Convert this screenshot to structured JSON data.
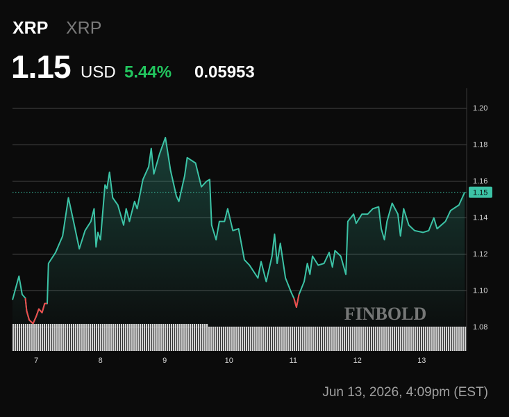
{
  "chart_data": {
    "type": "line",
    "symbol": "XRP",
    "name": "XRP",
    "price": "1.15",
    "currency": "USD",
    "change_percent": "5.44%",
    "change": "0.05953",
    "timestamp": "Jun 13, 2026, 4:09pm (EST)",
    "watermark": "FINBOLD",
    "fill_area": true,
    "grid": true,
    "x": [
      6.63,
      6.73,
      6.78,
      6.83,
      6.85,
      6.89,
      6.95,
      7.0,
      7.04,
      7.09,
      7.13,
      7.17,
      7.19,
      7.3,
      7.41,
      7.5,
      7.58,
      7.67,
      7.76,
      7.85,
      7.9,
      7.93,
      7.96,
      8.0,
      8.07,
      8.1,
      8.14,
      8.19,
      8.27,
      8.36,
      8.4,
      8.45,
      8.53,
      8.57,
      8.66,
      8.75,
      8.79,
      8.83,
      8.92,
      9.01,
      9.09,
      9.18,
      9.22,
      9.31,
      9.35,
      9.48,
      9.57,
      9.65,
      9.7,
      9.73,
      9.8,
      9.85,
      9.93,
      9.98,
      10.06,
      10.15,
      10.24,
      10.32,
      10.45,
      10.5,
      10.58,
      10.67,
      10.71,
      10.75,
      10.8,
      10.88,
      10.97,
      11.01,
      11.05,
      11.09,
      11.17,
      11.22,
      11.26,
      11.3,
      11.39,
      11.48,
      11.56,
      11.61,
      11.65,
      11.74,
      11.82,
      11.85,
      11.94,
      11.98,
      12.07,
      12.16,
      12.24,
      12.33,
      12.37,
      12.42,
      12.46,
      12.54,
      12.63,
      12.67,
      12.72,
      12.8,
      12.89,
      13.02,
      13.11,
      13.19,
      13.24,
      13.37,
      13.45,
      13.58,
      13.67
    ],
    "series": [
      {
        "color": "#3cc3a6",
        "values": [
          1.095,
          1.108,
          1.098,
          1.096,
          1.089,
          1.084,
          1.082,
          1.086,
          1.09,
          1.088,
          1.093,
          1.093,
          1.115,
          1.121,
          1.13,
          1.151,
          1.138,
          1.123,
          1.133,
          1.138,
          1.145,
          1.124,
          1.132,
          1.128,
          1.158,
          1.156,
          1.165,
          1.151,
          1.147,
          1.136,
          1.145,
          1.138,
          1.149,
          1.145,
          1.161,
          1.168,
          1.178,
          1.164,
          1.175,
          1.184,
          1.166,
          1.152,
          1.149,
          1.163,
          1.173,
          1.17,
          1.157,
          1.16,
          1.161,
          1.136,
          1.128,
          1.138,
          1.138,
          1.145,
          1.133,
          1.134,
          1.117,
          1.114,
          1.107,
          1.116,
          1.105,
          1.119,
          1.131,
          1.115,
          1.126,
          1.107,
          1.099,
          1.096,
          1.091,
          1.098,
          1.105,
          1.115,
          1.109,
          1.119,
          1.114,
          1.115,
          1.121,
          1.113,
          1.122,
          1.119,
          1.109,
          1.138,
          1.142,
          1.137,
          1.142,
          1.142,
          1.145,
          1.146,
          1.134,
          1.128,
          1.138,
          1.148,
          1.142,
          1.13,
          1.145,
          1.136,
          1.133,
          1.132,
          1.133,
          1.14,
          1.134,
          1.138,
          1.144,
          1.147,
          1.154
        ]
      },
      {
        "color": "#ee4b4b",
        "values": [
          null,
          null,
          null,
          1.096,
          1.089,
          1.084,
          1.082,
          1.086,
          1.09,
          1.088,
          1.093,
          1.093,
          null,
          null,
          null,
          null,
          null,
          null,
          null,
          null,
          null,
          null,
          null,
          null,
          null,
          null,
          null,
          null,
          null,
          null,
          null,
          null,
          null,
          null,
          null,
          null,
          null,
          null,
          null,
          null,
          null,
          null,
          null,
          null,
          null,
          null,
          null,
          null,
          null,
          null,
          null,
          null,
          null,
          null,
          null,
          null,
          null,
          null,
          null,
          null,
          null,
          null,
          null,
          null,
          null,
          null,
          null,
          1.096,
          1.091,
          1.098,
          null,
          null,
          null,
          null,
          null,
          null,
          null,
          null,
          null,
          null,
          null,
          null,
          null,
          null,
          null,
          null,
          null,
          null,
          null,
          null,
          null,
          null,
          null,
          null,
          null,
          null,
          null,
          null,
          null,
          null,
          null,
          null,
          null,
          null,
          null
        ]
      }
    ],
    "last_price": {
      "value": 1.154,
      "label": "1.15"
    },
    "last_price_color": "#3cc3a6",
    "xlim": [
      6.63,
      13.7
    ],
    "xticks": [
      7,
      8,
      9,
      10,
      11,
      12,
      13
    ],
    "ylim": [
      1.067,
      1.211
    ],
    "yticks": [
      1.08,
      {
        "value": 1.1,
        "label": "1.10"
      },
      1.12,
      1.14,
      1.16,
      1.18,
      {
        "value": 1.2,
        "label": "1.20"
      }
    ]
  }
}
